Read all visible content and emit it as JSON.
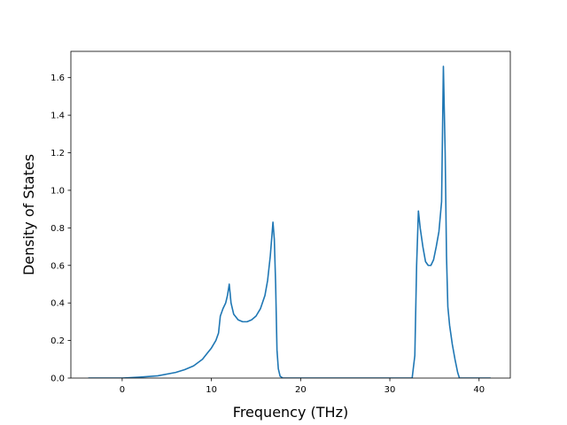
{
  "chart_data": {
    "type": "line",
    "title": "",
    "xlabel": "Frequency (THz)",
    "ylabel": "Density of States",
    "xlim": [
      -5.75,
      43.5
    ],
    "ylim": [
      0.0,
      1.74
    ],
    "xticks": [
      0,
      10,
      20,
      30,
      40
    ],
    "yticks": [
      0.0,
      0.2,
      0.4,
      0.6,
      0.8,
      1.0,
      1.2,
      1.4,
      1.6
    ],
    "xtick_labels": [
      "0",
      "10",
      "20",
      "30",
      "40"
    ],
    "ytick_labels": [
      "0.0",
      "0.2",
      "0.4",
      "0.6",
      "0.8",
      "1.0",
      "1.2",
      "1.4",
      "1.6"
    ],
    "grid": false,
    "series": [
      {
        "color": "#1f77b4",
        "x": [
          -3.8,
          0,
          2,
          4,
          6,
          7,
          8,
          9,
          9.5,
          10,
          10.5,
          10.8,
          11.0,
          11.3,
          11.6,
          11.8,
          12.0,
          12.2,
          12.5,
          13.0,
          13.5,
          14.0,
          14.5,
          15.0,
          15.5,
          16.0,
          16.3,
          16.6,
          16.9,
          17.05,
          17.2,
          17.35,
          17.5,
          17.7,
          18.0,
          20,
          25,
          30,
          32.5,
          32.8,
          33.0,
          33.2,
          33.4,
          33.7,
          34.0,
          34.3,
          34.6,
          34.9,
          35.2,
          35.5,
          35.8,
          36.0,
          36.2,
          36.35,
          36.5,
          36.7,
          37.0,
          37.3,
          37.6,
          37.8,
          40,
          41.3
        ],
        "y": [
          0.0,
          0.0,
          0.005,
          0.012,
          0.03,
          0.045,
          0.065,
          0.1,
          0.13,
          0.16,
          0.2,
          0.24,
          0.33,
          0.37,
          0.4,
          0.44,
          0.5,
          0.4,
          0.34,
          0.31,
          0.3,
          0.3,
          0.31,
          0.33,
          0.37,
          0.44,
          0.52,
          0.65,
          0.83,
          0.74,
          0.5,
          0.15,
          0.05,
          0.01,
          0.0,
          0.0,
          0.0,
          0.0,
          0.0,
          0.12,
          0.6,
          0.89,
          0.8,
          0.7,
          0.62,
          0.6,
          0.6,
          0.63,
          0.7,
          0.78,
          0.94,
          1.66,
          1.2,
          0.65,
          0.38,
          0.28,
          0.18,
          0.1,
          0.03,
          0.0,
          0.0,
          0.0
        ]
      }
    ]
  }
}
